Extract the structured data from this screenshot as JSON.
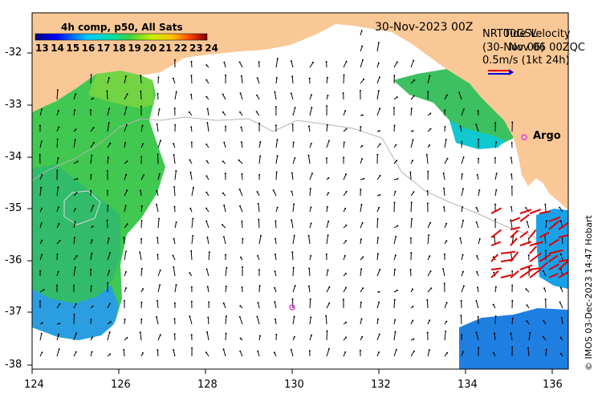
{
  "map": {
    "title_date": "30-Nov-2023 00Z",
    "legend_title": "4h comp, p50, All Sats",
    "sst_scale_labels": [
      "13",
      "14",
      "15",
      "16",
      "17",
      "18",
      "19",
      "20",
      "21",
      "22",
      "23",
      "24"
    ],
    "current_legend_line1": "NRT00GSL",
    "current_legend_line2": "(30-Nov 06)",
    "overlap_line1": "Tide Velocity",
    "overlap_line2": "Nov 06 00ZQC",
    "current_scale": "0.5m/s (1kt 24h)",
    "argo_label": "Argo",
    "credit": "© IMOS 03-Dec-2023 14:47 Hobart",
    "x_ticks": [
      "124",
      "126",
      "128",
      "130",
      "132",
      "134",
      "136"
    ],
    "y_ticks": [
      "-32",
      "-33",
      "-34",
      "-35",
      "-36",
      "-37",
      "-38"
    ],
    "colors": {
      "land": "#f9c896",
      "arrow": "#000000",
      "glider_arrow": "#e00000",
      "argo_marker": "#e040e0"
    }
  }
}
